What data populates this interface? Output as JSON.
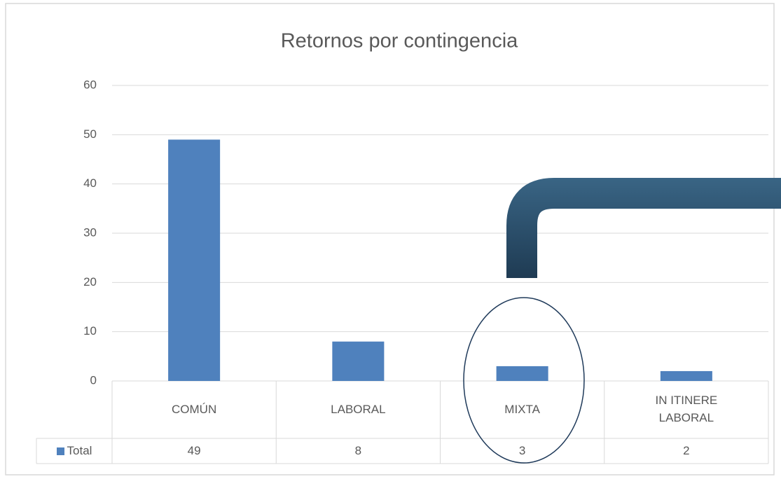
{
  "chart_data": {
    "type": "bar",
    "title": "Retornos por contingencia",
    "categories": [
      "COMÚN",
      "LABORAL",
      "MIXTA",
      "IN ITINERE LABORAL"
    ],
    "series": [
      {
        "name": "Total",
        "color": "#4f81bd",
        "values": [
          49,
          8,
          3,
          2
        ]
      }
    ],
    "ylim": [
      0,
      60
    ],
    "yticks": [
      0,
      10,
      20,
      30,
      40,
      50,
      60
    ],
    "grid": true
  }
}
